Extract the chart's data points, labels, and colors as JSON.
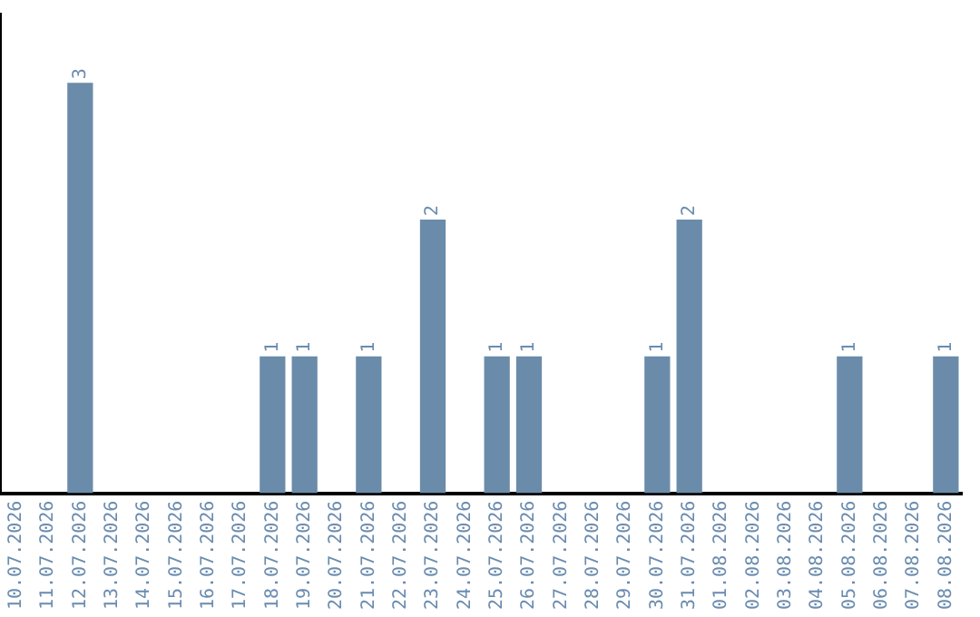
{
  "chart_data": {
    "type": "bar",
    "categories": [
      "10.07.2026",
      "11.07.2026",
      "12.07.2026",
      "13.07.2026",
      "14.07.2026",
      "15.07.2026",
      "16.07.2026",
      "17.07.2026",
      "18.07.2026",
      "19.07.2026",
      "20.07.2026",
      "21.07.2026",
      "22.07.2026",
      "23.07.2026",
      "24.07.2026",
      "25.07.2026",
      "26.07.2026",
      "27.07.2026",
      "28.07.2026",
      "29.07.2026",
      "30.07.2026",
      "31.07.2026",
      "01.08.2026",
      "02.08.2026",
      "03.08.2026",
      "04.08.2026",
      "05.08.2026",
      "06.08.2026",
      "07.08.2026",
      "08.08.2026"
    ],
    "values": [
      0,
      0,
      3,
      0,
      0,
      0,
      0,
      0,
      1,
      1,
      0,
      1,
      0,
      2,
      0,
      1,
      1,
      0,
      0,
      0,
      1,
      2,
      0,
      0,
      0,
      0,
      1,
      0,
      0,
      1
    ],
    "value_labels": [
      null,
      null,
      "3",
      null,
      null,
      null,
      null,
      null,
      "1",
      "1",
      null,
      "1",
      null,
      "2",
      null,
      "1",
      "1",
      null,
      null,
      null,
      "1",
      "2",
      null,
      null,
      null,
      null,
      "1",
      null,
      null,
      "1"
    ],
    "color": "#6a8caa",
    "grid": false,
    "legend": false,
    "tick_labels": "x"
  }
}
